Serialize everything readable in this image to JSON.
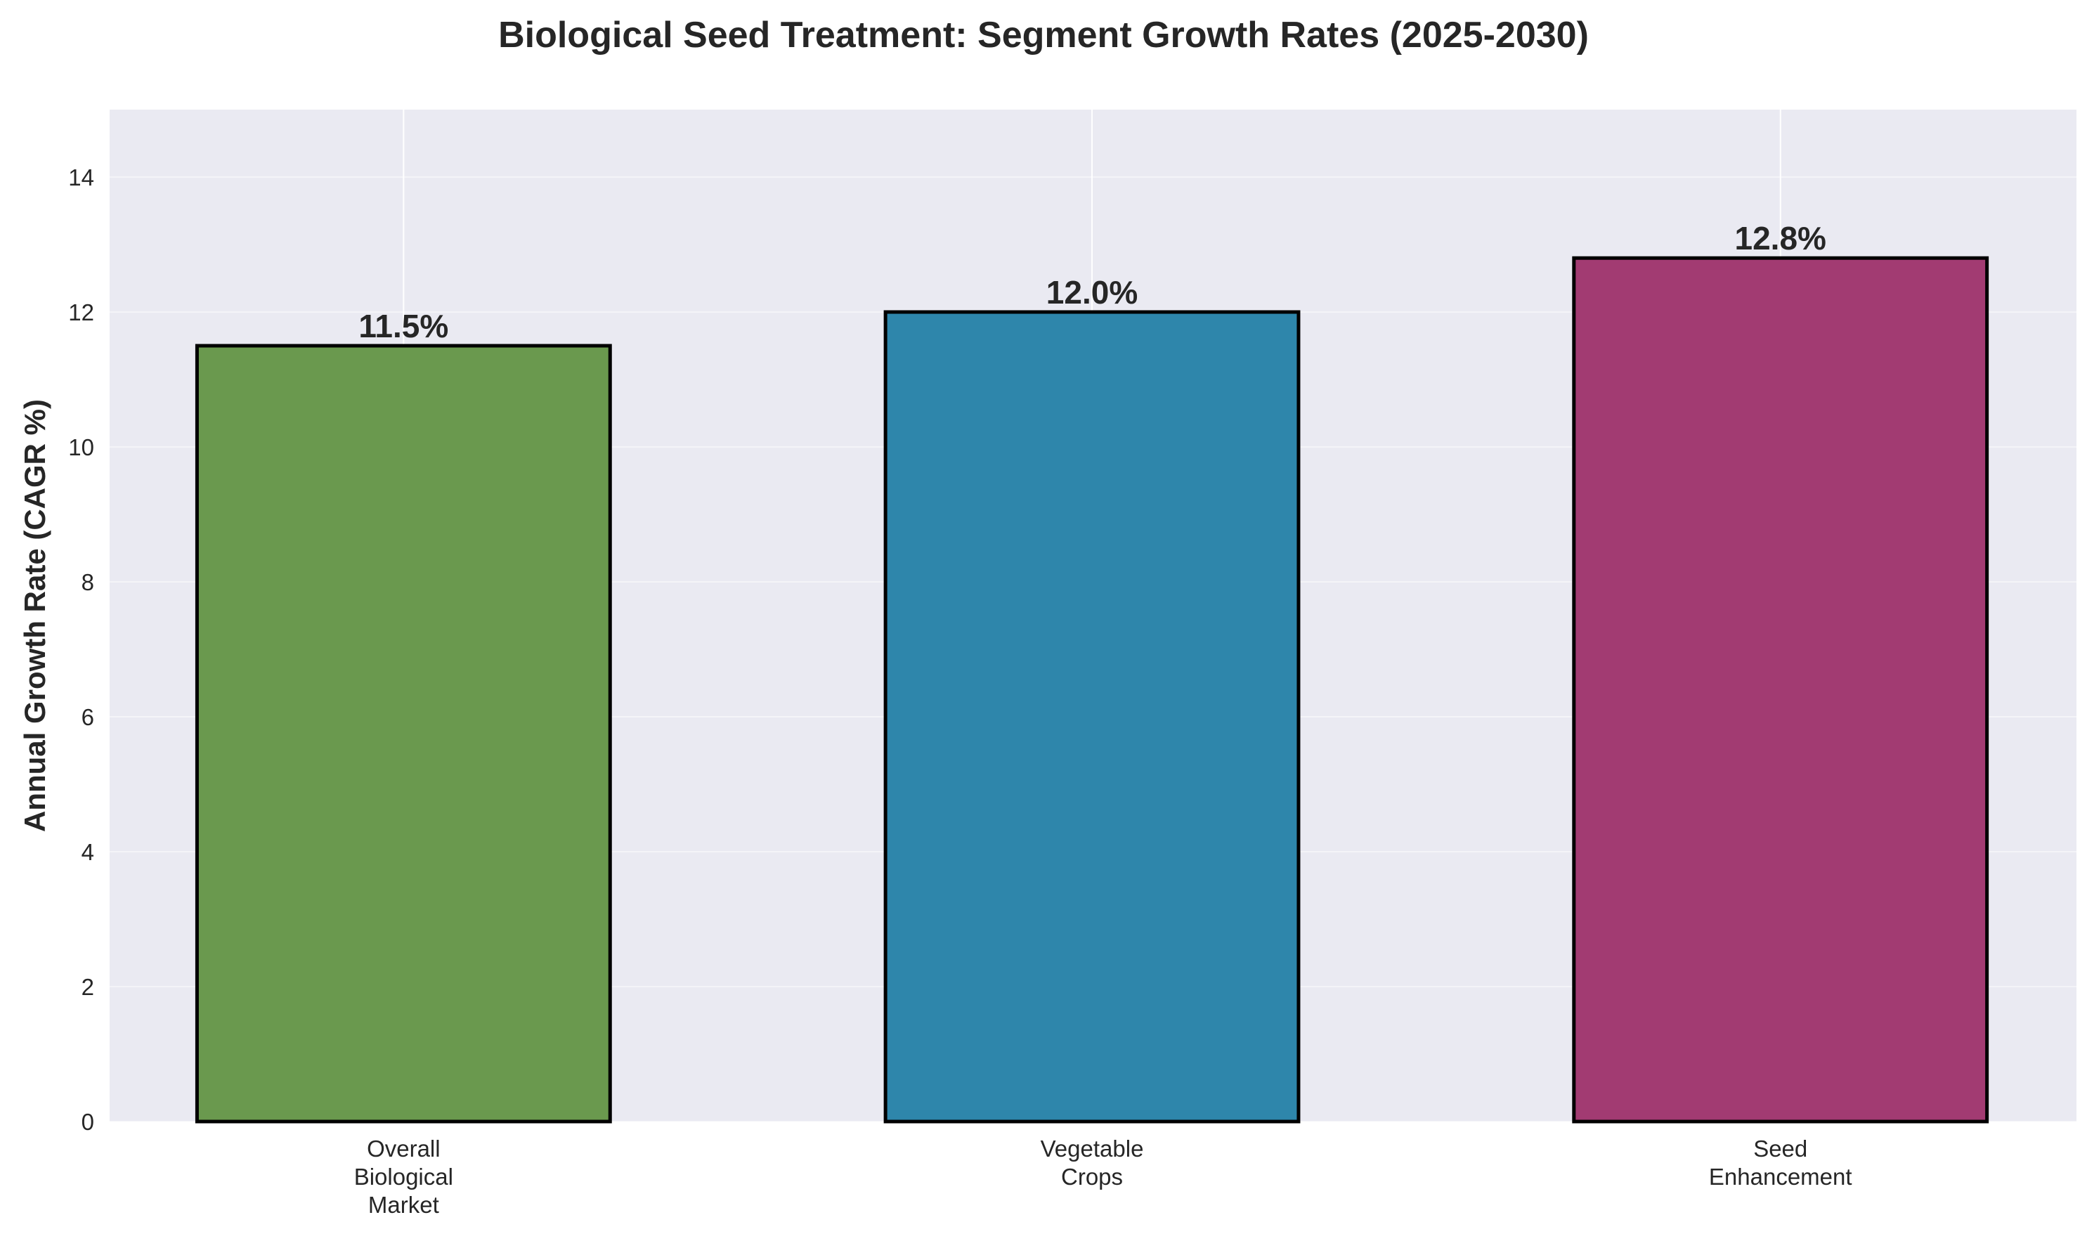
{
  "chart_data": {
    "type": "bar",
    "title": "Biological Seed Treatment: Segment Growth Rates (2025-2030)",
    "xlabel": "",
    "ylabel": "Annual Growth Rate (CAGR %)",
    "categories": [
      [
        "Overall",
        "Biological",
        "Market"
      ],
      [
        "Vegetable",
        "Crops"
      ],
      [
        "Seed",
        "Enhancement"
      ]
    ],
    "values": [
      11.5,
      12.0,
      12.8
    ],
    "value_labels": [
      "11.5%",
      "12.0%",
      "12.8%"
    ],
    "colors": [
      "#6A994E",
      "#2E86AB",
      "#A23B72"
    ],
    "ylim": [
      0,
      15
    ],
    "yticks": [
      0,
      2,
      4,
      6,
      8,
      10,
      12,
      14
    ],
    "grid": true,
    "background": "#EAEAF2"
  }
}
